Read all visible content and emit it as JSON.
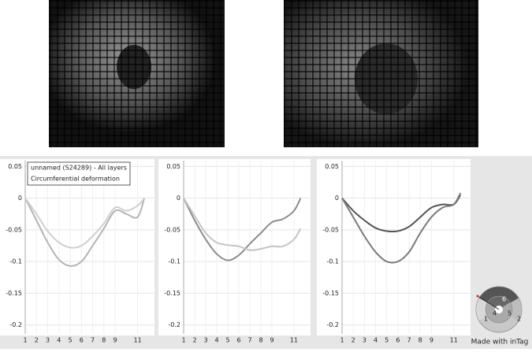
{
  "chart_data": [
    {
      "type": "line",
      "annotations": [
        "unnamed (S24289) - All layers",
        "Circumferential deformation"
      ],
      "x": [
        1,
        2,
        3,
        4,
        5,
        6,
        7,
        8,
        9,
        10,
        11,
        11.6
      ],
      "series": [
        {
          "color": "#b4b4b4",
          "values": [
            0,
            -0.035,
            -0.07,
            -0.097,
            -0.107,
            -0.1,
            -0.075,
            -0.048,
            -0.02,
            -0.025,
            -0.03,
            0
          ]
        },
        {
          "color": "#cfcfcf",
          "values": [
            0,
            -0.025,
            -0.052,
            -0.07,
            -0.078,
            -0.075,
            -0.06,
            -0.04,
            -0.015,
            -0.02,
            -0.012,
            0
          ]
        }
      ],
      "xlim": [
        1,
        12.5
      ],
      "ylim": [
        -0.214,
        0.059
      ],
      "xticks": [
        1,
        2,
        3,
        4,
        5,
        6,
        7,
        8,
        9,
        11
      ],
      "yticks": [
        0.05,
        0,
        -0.05,
        -0.1,
        -0.15,
        -0.2
      ],
      "grid": true
    },
    {
      "type": "line",
      "x": [
        1,
        2,
        3,
        4,
        5,
        6,
        7,
        8,
        9,
        10,
        11,
        11.6
      ],
      "series": [
        {
          "color": "#8c8c8c",
          "values": [
            0,
            -0.035,
            -0.065,
            -0.088,
            -0.098,
            -0.09,
            -0.072,
            -0.055,
            -0.038,
            -0.033,
            -0.02,
            0
          ]
        },
        {
          "color": "#c4c4c4",
          "values": [
            0,
            -0.028,
            -0.055,
            -0.07,
            -0.074,
            -0.076,
            -0.082,
            -0.08,
            -0.076,
            -0.076,
            -0.065,
            -0.048
          ]
        }
      ],
      "xlim": [
        1,
        12.5
      ],
      "ylim": [
        -0.214,
        0.059
      ],
      "xticks": [
        1,
        2,
        3,
        4,
        5,
        6,
        7,
        8,
        9,
        11
      ],
      "yticks": [
        0.05,
        0,
        -0.05,
        -0.1,
        -0.15,
        -0.2
      ],
      "grid": true
    },
    {
      "type": "line",
      "x": [
        1,
        2,
        3,
        4,
        5,
        6,
        7,
        8,
        9,
        10,
        11,
        11.6
      ],
      "series": [
        {
          "color": "#555555",
          "values": [
            0,
            -0.02,
            -0.035,
            -0.047,
            -0.052,
            -0.052,
            -0.045,
            -0.03,
            -0.015,
            -0.01,
            -0.01,
            0.005
          ]
        },
        {
          "color": "#7a7a7a",
          "values": [
            0,
            -0.03,
            -0.06,
            -0.085,
            -0.1,
            -0.1,
            -0.085,
            -0.055,
            -0.03,
            -0.015,
            -0.01,
            0.008
          ]
        }
      ],
      "xlim": [
        1,
        12.5
      ],
      "ylim": [
        -0.214,
        0.059
      ],
      "xticks": [
        1,
        2,
        3,
        4,
        5,
        6,
        7,
        8,
        9,
        11
      ],
      "yticks": [
        0.05,
        0,
        -0.05,
        -0.1,
        -0.15,
        -0.2
      ],
      "grid": true
    }
  ],
  "bullseye": {
    "labels": [
      "6",
      "1",
      "4",
      "5",
      "2"
    ],
    "caption": "Made with inTag"
  }
}
